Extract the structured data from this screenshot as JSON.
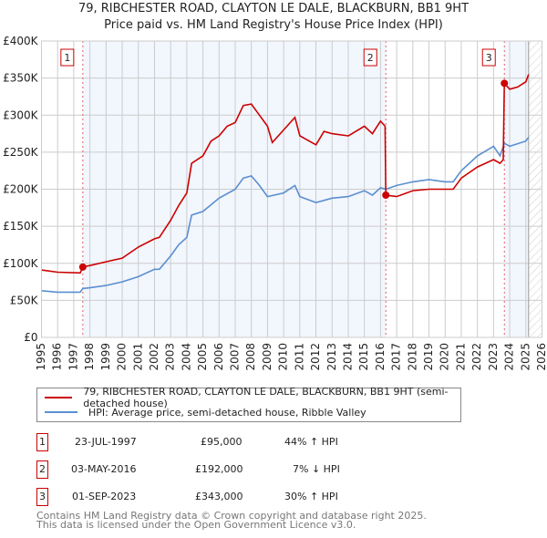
{
  "title_line1": "79, RIBCHESTER ROAD, CLAYTON LE DALE, BLACKBURN, BB1 9HT",
  "title_line2": "Price paid vs. HM Land Registry's House Price Index (HPI)",
  "chart_data": {
    "type": "line",
    "title": "79, RIBCHESTER ROAD, CLAYTON LE DALE, BLACKBURN, BB1 9HT - Price paid vs. HM Land Registry's House Price Index (HPI)",
    "xlim": [
      1995,
      2026
    ],
    "ylim": [
      0,
      400000
    ],
    "x_ticks": [
      "1995",
      "1996",
      "1997",
      "1998",
      "1999",
      "2000",
      "2001",
      "2002",
      "2003",
      "2004",
      "2005",
      "2006",
      "2007",
      "2008",
      "2009",
      "2010",
      "2011",
      "2012",
      "2013",
      "2014",
      "2015",
      "2016",
      "2017",
      "2018",
      "2019",
      "2020",
      "2021",
      "2022",
      "2023",
      "2024",
      "2025",
      "2026"
    ],
    "y_ticks": [
      {
        "v": 0,
        "label": "£0"
      },
      {
        "v": 50000,
        "label": "£50K"
      },
      {
        "v": 100000,
        "label": "£100K"
      },
      {
        "v": 150000,
        "label": "£150K"
      },
      {
        "v": 200000,
        "label": "£200K"
      },
      {
        "v": 250000,
        "label": "£250K"
      },
      {
        "v": 300000,
        "label": "£300K"
      },
      {
        "v": 350000,
        "label": "£350K"
      },
      {
        "v": 400000,
        "label": "£400K"
      }
    ],
    "grid": true,
    "forecast_from": 2025.17,
    "series": [
      {
        "name": "79, RIBCHESTER ROAD, CLAYTON LE DALE, BLACKBURN, BB1 9HT (semi-detached house)",
        "color": "#cc0000",
        "x": [
          1995,
          1996,
          1997.4,
          1997.56,
          1998,
          1999,
          2000,
          2001,
          2002,
          2002.3,
          2003,
          2003.5,
          2004,
          2004.3,
          2005,
          2005.5,
          2006,
          2006.5,
          2007,
          2007.5,
          2008,
          2008.5,
          2009,
          2009.3,
          2010,
          2010.7,
          2011,
          2012,
          2012.5,
          2013,
          2014,
          2015,
          2015.5,
          2016,
          2016.28,
          2016.33,
          2017,
          2018,
          2019,
          2020,
          2020.5,
          2021,
          2022,
          2023,
          2023.4,
          2023.6,
          2023.67,
          2024,
          2024.5,
          2025,
          2025.17
        ],
        "y": [
          91000,
          88000,
          87000,
          95000,
          97000,
          102000,
          107000,
          122000,
          133000,
          135000,
          158000,
          178000,
          195000,
          235000,
          245000,
          265000,
          272000,
          285000,
          290000,
          313000,
          315000,
          300000,
          285000,
          263000,
          280000,
          297000,
          272000,
          260000,
          278000,
          275000,
          272000,
          285000,
          275000,
          292000,
          285000,
          192000,
          190000,
          198000,
          200000,
          200000,
          200000,
          215000,
          230000,
          240000,
          235000,
          240000,
          343000,
          335000,
          338000,
          345000,
          355000
        ]
      },
      {
        "name": "HPI: Average price, semi-detached house, Ribble Valley",
        "color": "#5b8fd0",
        "x": [
          1995,
          1996,
          1997.4,
          1997.56,
          1998,
          1999,
          2000,
          2001,
          2002,
          2002.3,
          2003,
          2003.5,
          2004,
          2004.3,
          2005,
          2006,
          2007,
          2007.5,
          2008,
          2008.5,
          2009,
          2010,
          2010.7,
          2011,
          2012,
          2013,
          2014,
          2015,
          2015.5,
          2016,
          2016.33,
          2017,
          2018,
          2019,
          2020,
          2020.5,
          2021,
          2022,
          2023,
          2023.4,
          2023.67,
          2024,
          2025,
          2025.17
        ],
        "y": [
          63000,
          61000,
          61000,
          66000,
          67000,
          70000,
          75000,
          82000,
          92000,
          92000,
          110000,
          125000,
          135000,
          165000,
          170000,
          188000,
          200000,
          215000,
          218000,
          205000,
          190000,
          195000,
          205000,
          190000,
          182000,
          188000,
          190000,
          198000,
          192000,
          202000,
          200000,
          205000,
          210000,
          213000,
          210000,
          210000,
          225000,
          245000,
          258000,
          245000,
          262000,
          258000,
          265000,
          270000
        ]
      }
    ],
    "sales": [
      {
        "n": "1",
        "x": 1997.56,
        "y": 95000
      },
      {
        "n": "2",
        "x": 2016.33,
        "y": 192000
      },
      {
        "n": "3",
        "x": 2023.67,
        "y": 343000
      }
    ]
  },
  "legend": {
    "red": "79, RIBCHESTER ROAD, CLAYTON LE DALE, BLACKBURN, BB1 9HT (semi-detached house)",
    "blue": "HPI: Average price, semi-detached house, Ribble Valley"
  },
  "table": [
    {
      "n": "1",
      "date": "23-JUL-1997",
      "price": "£95,000",
      "hpi": "44% ↑ HPI"
    },
    {
      "n": "2",
      "date": "03-MAY-2016",
      "price": "£192,000",
      "hpi": "7% ↓ HPI"
    },
    {
      "n": "3",
      "date": "01-SEP-2023",
      "price": "£343,000",
      "hpi": "30% ↑ HPI"
    }
  ],
  "footer1": "Contains HM Land Registry data © Crown copyright and database right 2025.",
  "footer2": "This data is licensed under the Open Government Licence v3.0."
}
